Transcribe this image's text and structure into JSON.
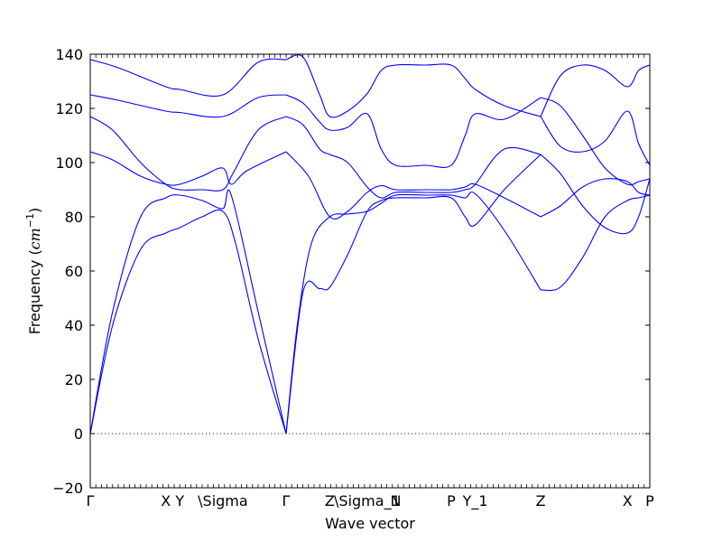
{
  "chart_data": {
    "type": "line",
    "title": "",
    "xlabel": "Wave vector",
    "ylabel": "Frequency ($cm^{-1}$)",
    "ylim": [
      -20,
      140
    ],
    "yticks": [
      -20,
      0,
      20,
      40,
      60,
      80,
      100,
      120,
      140
    ],
    "grid": false,
    "legend": "none",
    "line_color": "#0000ff",
    "zero_line_color": "#0000ff",
    "k_points": [
      {
        "label": "Γ",
        "x": 0.0
      },
      {
        "label": "X",
        "x": 0.135
      },
      {
        "label": "Y",
        "x": 0.16
      },
      {
        "label": "\\Sigma",
        "x": 0.237
      },
      {
        "label": "Γ",
        "x": 0.35
      },
      {
        "label": "Z",
        "x": 0.428
      },
      {
        "label": "\\Sigma_1",
        "x": 0.495
      },
      {
        "label": "N",
        "x": 0.546
      },
      {
        "label": "P",
        "x": 0.645
      },
      {
        "label": "Y_1",
        "x": 0.688
      },
      {
        "label": "Z",
        "x": 0.805
      },
      {
        "label": "X",
        "x": 0.96
      },
      {
        "label": "P",
        "x": 1.0
      }
    ],
    "series": [
      {
        "x": [
          0,
          0.04,
          0.09,
          0.135,
          0.16,
          0.2,
          0.237,
          0.252,
          0.3,
          0.35
        ],
        "y": [
          0,
          45,
          80,
          87,
          88,
          86,
          83,
          88,
          45,
          0
        ]
      },
      {
        "x": [
          0,
          0.04,
          0.09,
          0.135,
          0.16,
          0.2,
          0.237,
          0.26,
          0.3,
          0.35
        ],
        "y": [
          0,
          40,
          68,
          74,
          76,
          80,
          82,
          70,
          35,
          0
        ]
      },
      {
        "x": [
          0,
          0.04,
          0.09,
          0.135,
          0.16,
          0.2,
          0.237,
          0.252,
          0.28,
          0.35
        ],
        "y": [
          104,
          101,
          95,
          92,
          92,
          95,
          98,
          92,
          97,
          104
        ]
      },
      {
        "x": [
          0,
          0.04,
          0.09,
          0.135,
          0.16,
          0.2,
          0.237,
          0.255,
          0.3,
          0.35
        ],
        "y": [
          117,
          112,
          100,
          92,
          90,
          90,
          90,
          96,
          112,
          117
        ]
      },
      {
        "x": [
          0,
          0.05,
          0.135,
          0.16,
          0.237,
          0.3,
          0.35
        ],
        "y": [
          125,
          123,
          119,
          118.5,
          117,
          124,
          125
        ]
      },
      {
        "x": [
          0,
          0.05,
          0.135,
          0.16,
          0.237,
          0.3,
          0.35
        ],
        "y": [
          138,
          135,
          128,
          127,
          125,
          137,
          138
        ]
      },
      {
        "x": [
          0.35,
          0.37,
          0.395,
          0.428,
          0.46,
          0.495,
          0.52,
          0.546,
          0.6,
          0.645,
          0.67,
          0.688,
          0.74,
          0.805
        ],
        "y": [
          0,
          40,
          70,
          80,
          81,
          82,
          85,
          88,
          88,
          88,
          87,
          88.5,
          75,
          53
        ]
      },
      {
        "x": [
          0.35,
          0.38,
          0.41,
          0.428,
          0.46,
          0.495,
          0.52,
          0.546,
          0.6,
          0.645,
          0.67,
          0.688,
          0.74,
          0.805
        ],
        "y": [
          0,
          52,
          53.5,
          54,
          66,
          82,
          86,
          87,
          87,
          87,
          80,
          77,
          90,
          103
        ]
      },
      {
        "x": [
          0.35,
          0.39,
          0.428,
          0.46,
          0.495,
          0.52,
          0.546,
          0.6,
          0.645,
          0.67,
          0.688,
          0.74,
          0.805
        ],
        "y": [
          104,
          95,
          80,
          82,
          89,
          91.5,
          90,
          90,
          90,
          91,
          92,
          87,
          80
        ]
      },
      {
        "x": [
          0.35,
          0.38,
          0.41,
          0.428,
          0.46,
          0.495,
          0.52,
          0.546,
          0.6,
          0.645,
          0.67,
          0.688,
          0.74,
          0.805
        ],
        "y": [
          117,
          114,
          105,
          103,
          100,
          91,
          87,
          89,
          89,
          89,
          90,
          92,
          105,
          103
        ]
      },
      {
        "x": [
          0.35,
          0.38,
          0.41,
          0.428,
          0.46,
          0.495,
          0.52,
          0.546,
          0.6,
          0.645,
          0.67,
          0.688,
          0.74,
          0.805
        ],
        "y": [
          125,
          122,
          115,
          112,
          113,
          118,
          105,
          99,
          99,
          99,
          110,
          118,
          116,
          124
        ]
      },
      {
        "x": [
          0.35,
          0.38,
          0.41,
          0.428,
          0.46,
          0.495,
          0.52,
          0.546,
          0.6,
          0.645,
          0.67,
          0.688,
          0.74,
          0.805
        ],
        "y": [
          138,
          139,
          125,
          117,
          119,
          125.5,
          134,
          136,
          136,
          136,
          131,
          127,
          121,
          117
        ]
      },
      {
        "x": [
          0.805,
          0.84,
          0.88,
          0.92,
          0.96,
          0.98,
          1.0
        ],
        "y": [
          53,
          54,
          65,
          80,
          86,
          87,
          88
        ]
      },
      {
        "x": [
          0.805,
          0.84,
          0.88,
          0.92,
          0.96,
          0.98,
          1.0
        ],
        "y": [
          80,
          84,
          91,
          94,
          93,
          89,
          88
        ]
      },
      {
        "x": [
          0.805,
          0.84,
          0.88,
          0.92,
          0.96,
          0.98,
          1.0
        ],
        "y": [
          103,
          96,
          84,
          76,
          74,
          80,
          94
        ]
      },
      {
        "x": [
          0.805,
          0.84,
          0.88,
          0.92,
          0.96,
          0.98,
          1.0
        ],
        "y": [
          117,
          106,
          104,
          108,
          119,
          107,
          99
        ]
      },
      {
        "x": [
          0.805,
          0.84,
          0.88,
          0.92,
          0.96,
          0.98,
          1.0
        ],
        "y": [
          124,
          121,
          110,
          98,
          92,
          93,
          94
        ]
      },
      {
        "x": [
          0.805,
          0.84,
          0.88,
          0.92,
          0.96,
          0.98,
          1.0
        ],
        "y": [
          117,
          132,
          136,
          134,
          128,
          134,
          136
        ]
      }
    ]
  }
}
